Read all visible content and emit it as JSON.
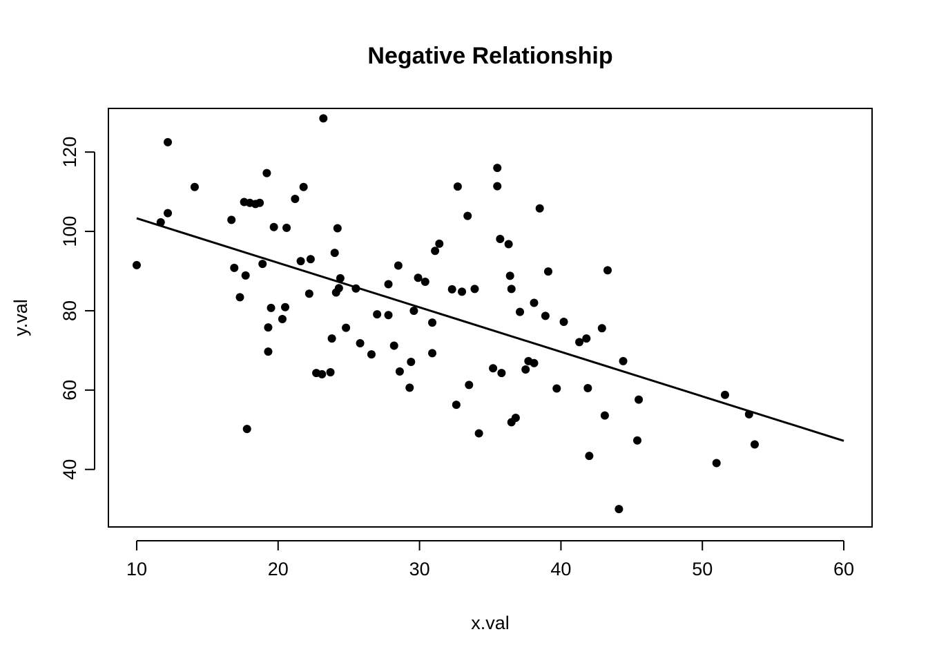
{
  "chart_data": {
    "type": "scatter",
    "title": "Negative Relationship",
    "xlabel": "x.val",
    "ylabel": "y.val",
    "xlim": [
      8,
      62
    ],
    "ylim": [
      25.5,
      131
    ],
    "xticks": [
      10,
      20,
      30,
      40,
      50,
      60
    ],
    "yticks": [
      40,
      60,
      80,
      100,
      120
    ],
    "grid": false,
    "legend": "none",
    "point_color": "#000000",
    "line_color": "#000000",
    "fit_line": {
      "x": [
        10,
        60
      ],
      "y": [
        103.3,
        47.2
      ]
    },
    "points": [
      [
        10.0,
        91.5
      ],
      [
        11.7,
        102.3
      ],
      [
        12.2,
        122.5
      ],
      [
        12.2,
        104.6
      ],
      [
        14.1,
        111.2
      ],
      [
        16.7,
        102.9
      ],
      [
        16.9,
        90.8
      ],
      [
        17.3,
        83.4
      ],
      [
        17.6,
        107.4
      ],
      [
        17.7,
        88.9
      ],
      [
        17.8,
        50.2
      ],
      [
        18.0,
        107.2
      ],
      [
        18.4,
        106.9
      ],
      [
        18.7,
        107.2
      ],
      [
        18.9,
        91.8
      ],
      [
        19.2,
        114.7
      ],
      [
        19.3,
        75.8
      ],
      [
        19.3,
        69.7
      ],
      [
        19.5,
        80.7
      ],
      [
        19.7,
        101.1
      ],
      [
        20.3,
        77.9
      ],
      [
        20.5,
        80.9
      ],
      [
        20.6,
        100.9
      ],
      [
        21.2,
        108.2
      ],
      [
        21.6,
        92.5
      ],
      [
        21.8,
        111.2
      ],
      [
        22.2,
        84.3
      ],
      [
        22.3,
        93.0
      ],
      [
        22.7,
        64.3
      ],
      [
        23.1,
        64.0
      ],
      [
        23.2,
        128.5
      ],
      [
        23.7,
        64.5
      ],
      [
        23.8,
        73.0
      ],
      [
        24.0,
        94.6
      ],
      [
        24.1,
        84.6
      ],
      [
        24.2,
        100.8
      ],
      [
        24.3,
        85.7
      ],
      [
        24.4,
        88.2
      ],
      [
        24.8,
        75.7
      ],
      [
        25.5,
        85.6
      ],
      [
        25.8,
        71.8
      ],
      [
        26.6,
        69.0
      ],
      [
        27.0,
        79.1
      ],
      [
        27.8,
        86.7
      ],
      [
        27.8,
        78.9
      ],
      [
        28.2,
        71.2
      ],
      [
        28.5,
        91.4
      ],
      [
        28.6,
        64.7
      ],
      [
        29.3,
        60.6
      ],
      [
        29.4,
        67.1
      ],
      [
        29.6,
        80.0
      ],
      [
        29.9,
        88.3
      ],
      [
        30.4,
        87.3
      ],
      [
        30.9,
        77.0
      ],
      [
        30.9,
        69.3
      ],
      [
        31.1,
        95.1
      ],
      [
        31.4,
        96.9
      ],
      [
        32.3,
        85.4
      ],
      [
        32.6,
        56.3
      ],
      [
        32.7,
        111.3
      ],
      [
        33.0,
        84.8
      ],
      [
        33.4,
        103.9
      ],
      [
        33.5,
        61.3
      ],
      [
        33.9,
        85.5
      ],
      [
        34.2,
        49.1
      ],
      [
        35.2,
        65.5
      ],
      [
        35.5,
        116.0
      ],
      [
        35.5,
        111.4
      ],
      [
        35.7,
        98.1
      ],
      [
        35.8,
        64.3
      ],
      [
        36.3,
        96.8
      ],
      [
        36.4,
        88.8
      ],
      [
        36.5,
        85.5
      ],
      [
        36.5,
        51.9
      ],
      [
        36.8,
        53.0
      ],
      [
        37.1,
        79.7
      ],
      [
        37.5,
        65.2
      ],
      [
        37.7,
        67.3
      ],
      [
        38.1,
        66.8
      ],
      [
        38.1,
        82.0
      ],
      [
        38.5,
        105.8
      ],
      [
        38.9,
        78.7
      ],
      [
        39.1,
        89.9
      ],
      [
        39.7,
        60.4
      ],
      [
        40.2,
        77.2
      ],
      [
        41.3,
        72.1
      ],
      [
        41.8,
        73.0
      ],
      [
        41.9,
        60.5
      ],
      [
        42.0,
        43.4
      ],
      [
        42.9,
        75.6
      ],
      [
        43.1,
        53.6
      ],
      [
        43.3,
        90.2
      ],
      [
        44.1,
        30.0
      ],
      [
        44.4,
        67.3
      ],
      [
        45.4,
        47.3
      ],
      [
        45.5,
        57.6
      ],
      [
        51.0,
        41.6
      ],
      [
        51.6,
        58.8
      ],
      [
        53.3,
        53.9
      ],
      [
        53.7,
        46.3
      ]
    ]
  }
}
